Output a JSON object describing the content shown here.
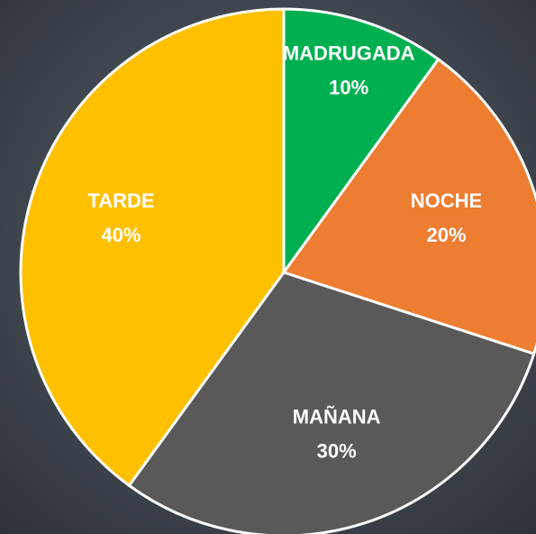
{
  "chart_data": {
    "type": "pie",
    "categories": [
      "MADRUGADA",
      "NOCHE",
      "MAÑANA",
      "TARDE"
    ],
    "values": [
      10,
      20,
      30,
      40
    ],
    "value_labels": [
      "10%",
      "20%",
      "30%",
      "40%"
    ],
    "colors": [
      "#00b050",
      "#ed7d31",
      "#595959",
      "#ffc000"
    ]
  }
}
